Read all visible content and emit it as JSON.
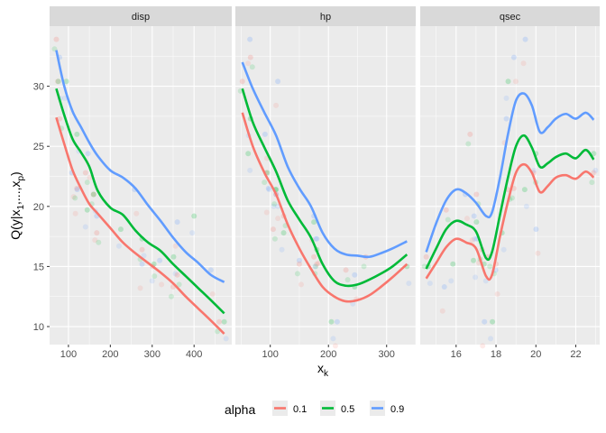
{
  "chart_data": {
    "type": "line",
    "ylabel_main": "Q(y|x",
    "ylabel_sub1": "1",
    "ylabel_sep": ",...,x",
    "ylabel_sub2": "p",
    "ylabel_close": ")",
    "xlabel_main": "x",
    "xlabel_sub": "k",
    "ylim": [
      8.5,
      35
    ],
    "y_ticks": [
      10,
      15,
      20,
      25,
      30
    ],
    "legend": {
      "title": "alpha",
      "entries": [
        {
          "label": "0.1",
          "color": "#F8766D"
        },
        {
          "label": "0.5",
          "color": "#00BA38"
        },
        {
          "label": "0.9",
          "color": "#619CFF"
        }
      ]
    },
    "panels": [
      {
        "strip": "disp",
        "xlim": [
          55,
          490
        ],
        "x_ticks": [
          100,
          200,
          300,
          400
        ],
        "points": [
          [
            71.1,
            33.9
          ],
          [
            75.7,
            30.4
          ],
          [
            78.7,
            32.4
          ],
          [
            79,
            27.3
          ],
          [
            95.1,
            30.4
          ],
          [
            108,
            22.8
          ],
          [
            120.1,
            21.5
          ],
          [
            120.3,
            26
          ],
          [
            121,
            21.4
          ],
          [
            140.8,
            22.8
          ],
          [
            145,
            19.7
          ],
          [
            146.7,
            24.4
          ],
          [
            160,
            21
          ],
          [
            160,
            21
          ],
          [
            167.6,
            19.2
          ],
          [
            167.6,
            17.8
          ],
          [
            225,
            18.1
          ],
          [
            258,
            21.4
          ],
          [
            275.8,
            16.4
          ],
          [
            275.8,
            17.3
          ],
          [
            275.8,
            15.2
          ],
          [
            301,
            15
          ],
          [
            304,
            15.2
          ],
          [
            318,
            15.5
          ],
          [
            350,
            13.3
          ],
          [
            351,
            15.8
          ],
          [
            360,
            18.7
          ],
          [
            360,
            14.3
          ],
          [
            400,
            19.2
          ],
          [
            440,
            14.7
          ],
          [
            460,
            10.4
          ],
          [
            472,
            10.4
          ]
        ],
        "series": [
          {
            "name": "0.1",
            "x": [
              71,
              90,
              110,
              130,
              150,
              170,
              200,
              230,
              260,
              290,
              320,
              350,
              380,
              410,
              440,
              472
            ],
            "y": [
              27.4,
              25.2,
              23.0,
              21.5,
              20.2,
              19.4,
              18.2,
              17.0,
              16.1,
              15.3,
              14.5,
              13.6,
              12.5,
              11.5,
              10.5,
              9.4
            ]
          },
          {
            "name": "0.5",
            "x": [
              71,
              90,
              110,
              130,
              150,
              170,
              200,
              230,
              260,
              290,
              320,
              350,
              380,
              410,
              440,
              472
            ],
            "y": [
              29.8,
              27.6,
              25.6,
              24.5,
              23.3,
              21.3,
              19.9,
              19.3,
              18.0,
              17.0,
              16.3,
              15.2,
              14.2,
              13.2,
              12.2,
              11.1
            ]
          },
          {
            "name": "0.9",
            "x": [
              71,
              90,
              110,
              130,
              150,
              170,
              200,
              230,
              260,
              290,
              320,
              350,
              380,
              410,
              440,
              472
            ],
            "y": [
              33.0,
              30.0,
              27.9,
              26.6,
              25.3,
              24.2,
              23.0,
              22.4,
              21.5,
              20.1,
              18.8,
              17.4,
              16.2,
              15.3,
              14.3,
              13.7
            ]
          }
        ]
      },
      {
        "strip": "hp",
        "xlim": [
          40,
          350
        ],
        "x_ticks": [
          100,
          200,
          300
        ],
        "points": [
          [
            52,
            30.4
          ],
          [
            62,
            24.4
          ],
          [
            65,
            33.9
          ],
          [
            66,
            32.4
          ],
          [
            66,
            27.3
          ],
          [
            91,
            26
          ],
          [
            93,
            22.8
          ],
          [
            95,
            22.8
          ],
          [
            97,
            21.5
          ],
          [
            105,
            18.1
          ],
          [
            109,
            21.4
          ],
          [
            110,
            21
          ],
          [
            110,
            21
          ],
          [
            110,
            21.4
          ],
          [
            113,
            30.4
          ],
          [
            123,
            19.2
          ],
          [
            123,
            17.8
          ],
          [
            150,
            15.5
          ],
          [
            150,
            15.2
          ],
          [
            175,
            18.7
          ],
          [
            175,
            19.2
          ],
          [
            175,
            15.8
          ],
          [
            180,
            16.4
          ],
          [
            180,
            17.3
          ],
          [
            180,
            15.2
          ],
          [
            205,
            10.4
          ],
          [
            215,
            10.4
          ],
          [
            230,
            14.7
          ],
          [
            245,
            13.3
          ],
          [
            245,
            14.3
          ],
          [
            264,
            15.8
          ],
          [
            335,
            15
          ]
        ],
        "series": [
          {
            "name": "0.1",
            "x": [
              52,
              70,
              90,
              110,
              130,
              150,
              170,
              190,
              210,
              230,
              250,
              270,
              290,
              310,
              335
            ],
            "y": [
              27.8,
              25.0,
              22.8,
              21.0,
              18.5,
              16.5,
              14.8,
              13.3,
              12.5,
              12.1,
              12.2,
              12.6,
              13.3,
              14.1,
              15.2
            ]
          },
          {
            "name": "0.5",
            "x": [
              52,
              70,
              90,
              110,
              130,
              150,
              170,
              190,
              210,
              230,
              250,
              270,
              290,
              310,
              335
            ],
            "y": [
              29.8,
              27.0,
              24.9,
              22.9,
              20.5,
              18.9,
              17.4,
              15.2,
              13.8,
              13.4,
              13.5,
              13.9,
              14.4,
              15.0,
              16.0
            ]
          },
          {
            "name": "0.9",
            "x": [
              52,
              70,
              90,
              110,
              130,
              150,
              170,
              190,
              210,
              230,
              250,
              270,
              290,
              310,
              335
            ],
            "y": [
              32.0,
              29.8,
              27.8,
              25.9,
              23.3,
              21.5,
              20.0,
              17.8,
              16.5,
              16.0,
              15.9,
              15.8,
              16.1,
              16.5,
              17.1
            ]
          }
        ]
      },
      {
        "strip": "qsec",
        "xlim": [
          14.2,
          23.2
        ],
        "x_ticks": [
          16,
          18,
          20,
          22
        ],
        "points": [
          [
            14.5,
            15.8
          ],
          [
            14.6,
            15
          ],
          [
            15.41,
            13.3
          ],
          [
            15.5,
            19.7
          ],
          [
            15.84,
            15.2
          ],
          [
            16.46,
            21
          ],
          [
            16.7,
            26
          ],
          [
            16.87,
            15.5
          ],
          [
            16.9,
            19.2
          ],
          [
            17.02,
            21
          ],
          [
            17.02,
            18.7
          ],
          [
            17.05,
            17.3
          ],
          [
            17.3,
            16.4
          ],
          [
            17.4,
            15.2
          ],
          [
            17.42,
            10.4
          ],
          [
            17.6,
            15.8
          ],
          [
            17.82,
            10.4
          ],
          [
            17.98,
            14.7
          ],
          [
            18.0,
            15.2
          ],
          [
            18.3,
            17.8
          ],
          [
            18.52,
            27.3
          ],
          [
            18.6,
            21.4
          ],
          [
            18.61,
            30.4
          ],
          [
            18.9,
            32.4
          ],
          [
            18.9,
            21.5
          ],
          [
            19.44,
            21.4
          ],
          [
            19.47,
            33.9
          ],
          [
            19.9,
            22.8
          ],
          [
            20.0,
            24.4
          ],
          [
            20.01,
            18.1
          ],
          [
            22.9,
            22.8
          ],
          [
            22.9,
            24.4
          ]
        ],
        "series": [
          {
            "name": "0.1",
            "x": [
              14.5,
              15.0,
              15.5,
              16.0,
              16.5,
              17.0,
              17.5,
              17.8,
              18.2,
              18.6,
              19.0,
              19.4,
              19.8,
              20.2,
              20.6,
              21.0,
              21.5,
              22.0,
              22.5,
              22.9
            ],
            "y": [
              14.0,
              15.3,
              16.6,
              17.3,
              17.0,
              16.5,
              14.2,
              14.3,
              17.5,
              20.4,
              22.8,
              23.5,
              22.8,
              21.2,
              21.7,
              22.4,
              22.6,
              22.3,
              22.9,
              22.4
            ]
          },
          {
            "name": "0.5",
            "x": [
              14.5,
              15.0,
              15.5,
              16.0,
              16.5,
              17.0,
              17.5,
              17.8,
              18.2,
              18.6,
              19.0,
              19.4,
              19.8,
              20.2,
              20.6,
              21.0,
              21.5,
              22.0,
              22.5,
              22.9
            ],
            "y": [
              14.8,
              16.5,
              18.1,
              18.8,
              18.5,
              17.9,
              15.7,
              16.2,
              19.3,
              22.4,
              25.0,
              25.9,
              24.9,
              23.3,
              23.6,
              24.1,
              24.4,
              24.0,
              24.7,
              23.9
            ]
          },
          {
            "name": "0.9",
            "x": [
              14.5,
              15.0,
              15.5,
              16.0,
              16.5,
              17.0,
              17.5,
              17.8,
              18.2,
              18.6,
              19.0,
              19.4,
              19.8,
              20.2,
              20.6,
              21.0,
              21.5,
              22.0,
              22.5,
              22.9
            ],
            "y": [
              16.2,
              18.6,
              20.5,
              21.4,
              21.1,
              20.3,
              19.2,
              19.5,
              22.4,
              26.0,
              28.8,
              29.4,
              28.4,
              26.2,
              26.6,
              27.3,
              27.7,
              27.3,
              27.8,
              27.2
            ]
          }
        ]
      }
    ]
  }
}
